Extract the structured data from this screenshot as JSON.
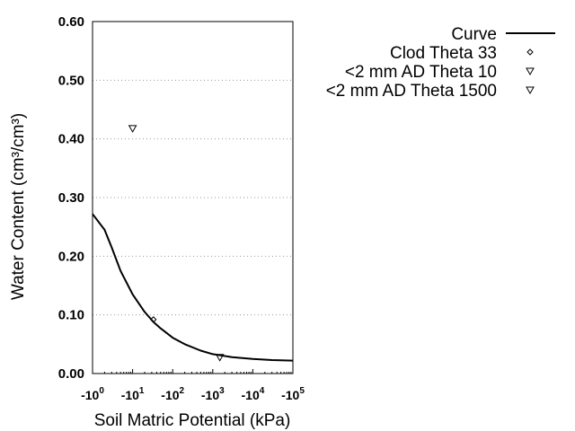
{
  "chart_data": {
    "type": "scatter",
    "title": "",
    "xlabel": "Soil Matric Potential (kPa)",
    "ylabel": "Water Content (cm³/cm³)",
    "x_scale": "log",
    "x_ticks": [
      "-10^0",
      "-10^1",
      "-10^2",
      "-10^3",
      "-10^4",
      "-10^5"
    ],
    "xlim": [
      -1,
      -100000
    ],
    "y_ticks": [
      "0.00",
      "0.10",
      "0.20",
      "0.30",
      "0.40",
      "0.50",
      "0.60"
    ],
    "ylim": [
      0,
      0.6
    ],
    "grid": "horizontal dotted",
    "legend_position": "top-right, outside plot",
    "series": [
      {
        "name": "Curve",
        "kind": "line",
        "color": "#000000",
        "x": [
          -1,
          -2,
          -3,
          -5,
          -10,
          -20,
          -33,
          -50,
          -100,
          -200,
          -500,
          -1000,
          -3000,
          -10000,
          -30000,
          -100000
        ],
        "y": [
          0.272,
          0.245,
          0.215,
          0.175,
          0.135,
          0.105,
          0.088,
          0.077,
          0.061,
          0.05,
          0.039,
          0.033,
          0.028,
          0.025,
          0.023,
          0.022
        ]
      },
      {
        "name": "Clod Theta 33",
        "kind": "point",
        "marker": "diamond",
        "x": [
          -33
        ],
        "y": [
          0.092
        ]
      },
      {
        "name": "<2 mm AD Theta 10",
        "kind": "point",
        "marker": "triangle-down",
        "x": [
          -10
        ],
        "y": [
          0.418
        ]
      },
      {
        "name": "<2 mm AD Theta 1500",
        "kind": "point",
        "marker": "triangle-down",
        "x": [
          -1500
        ],
        "y": [
          0.028
        ]
      }
    ]
  }
}
